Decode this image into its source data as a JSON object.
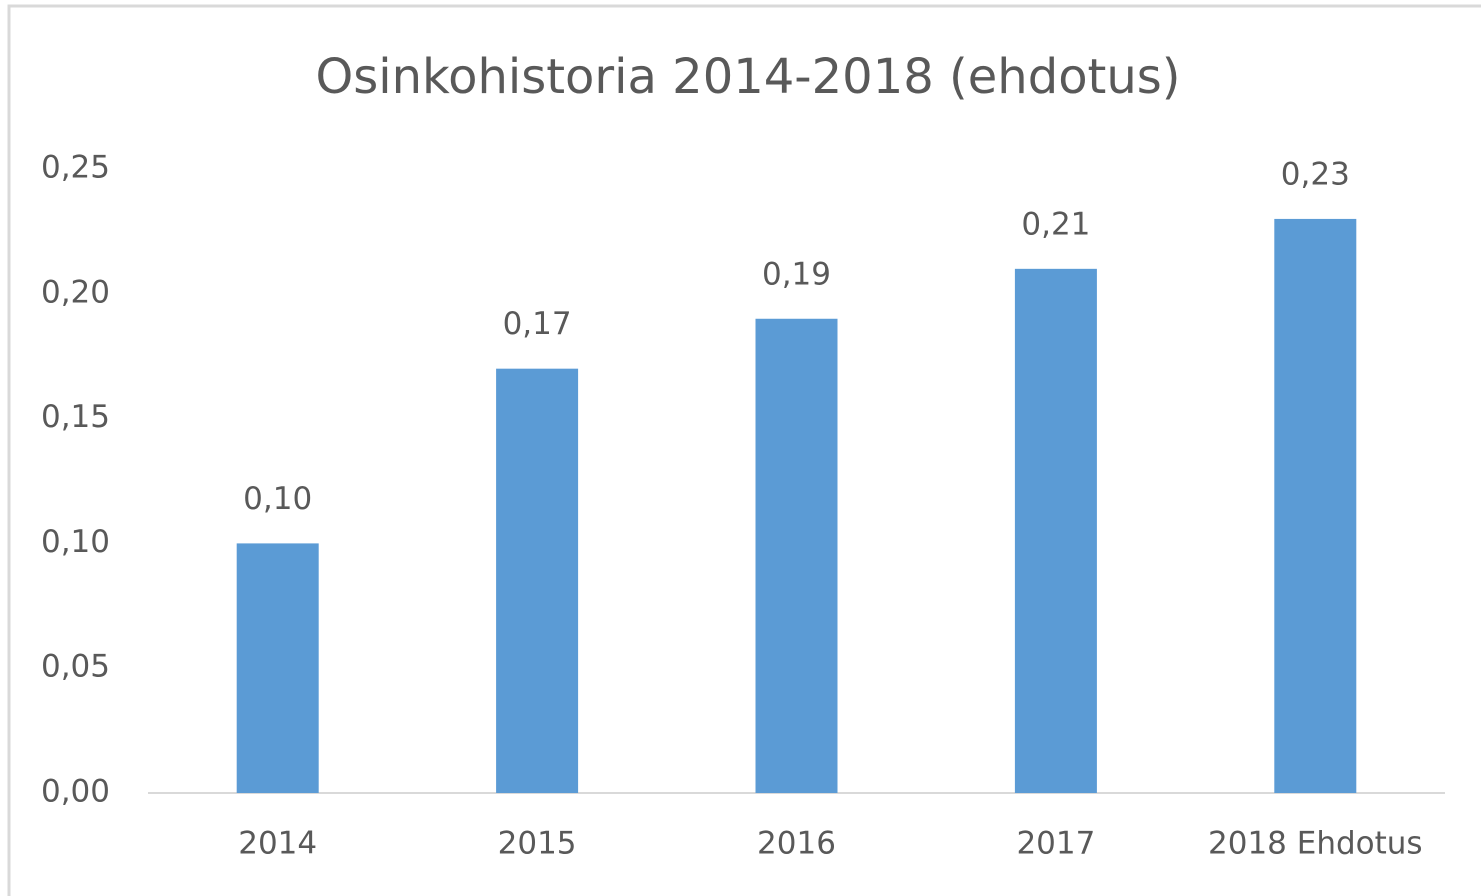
{
  "chart_data": {
    "type": "bar",
    "title": "Osinkohistoria 2014-2018 (ehdotus)",
    "categories": [
      "2014",
      "2015",
      "2016",
      "2017",
      "2018 Ehdotus"
    ],
    "values": [
      0.1,
      0.17,
      0.19,
      0.21,
      0.23
    ],
    "value_labels": [
      "0,10",
      "0,17",
      "0,19",
      "0,21",
      "0,23"
    ],
    "color": "#5b9bd5",
    "ylim": [
      0,
      0.25
    ],
    "yticks": [
      {
        "value": 0,
        "label": "0,00"
      },
      {
        "value": 0.05,
        "label": "0,05"
      },
      {
        "value": 0.1,
        "label": "0,10"
      },
      {
        "value": 0.15,
        "label": "0,15"
      },
      {
        "value": 0.2,
        "label": "0,20"
      },
      {
        "value": 0.25,
        "label": "0,25"
      }
    ],
    "grid": false
  }
}
